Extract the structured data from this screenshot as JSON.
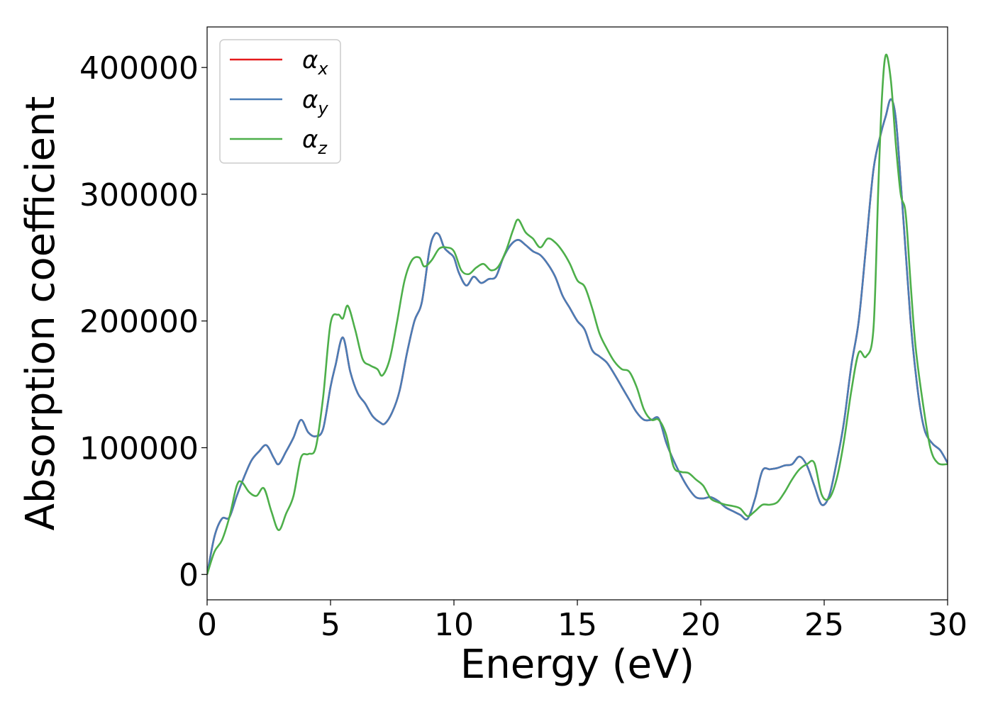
{
  "chart_data": {
    "type": "line",
    "xlabel": "Energy (eV)",
    "ylabel": "Absorption coefficient",
    "xlim": [
      0,
      30
    ],
    "ylim": [
      -20000,
      432000
    ],
    "xticks": [
      0,
      5,
      10,
      15,
      20,
      25,
      30
    ],
    "yticks": [
      0,
      100000,
      200000,
      300000,
      400000
    ],
    "xtick_labels": [
      "0",
      "5",
      "10",
      "15",
      "20",
      "25",
      "30"
    ],
    "ytick_labels": [
      "0",
      "100000",
      "200000",
      "300000",
      "400000"
    ],
    "legend_position": "top-left",
    "grid": false,
    "series": [
      {
        "name": "α",
        "subscript": "x",
        "color": "#e41a1c",
        "x": [
          0,
          0.3,
          0.6,
          0.9,
          1.2,
          1.5,
          1.8,
          2.1,
          2.4,
          2.7,
          2.9,
          3.2,
          3.5,
          3.8,
          4.1,
          4.4,
          4.7,
          5.0,
          5.2,
          5.5,
          5.8,
          6.1,
          6.4,
          6.7,
          7.0,
          7.2,
          7.5,
          7.8,
          8.1,
          8.4,
          8.7,
          9.0,
          9.2,
          9.4,
          9.6,
          9.8,
          10.0,
          10.2,
          10.5,
          10.8,
          11.1,
          11.4,
          11.7,
          12.0,
          12.3,
          12.6,
          12.9,
          13.2,
          13.5,
          13.8,
          14.1,
          14.4,
          14.7,
          15.0,
          15.3,
          15.6,
          15.9,
          16.2,
          16.5,
          16.8,
          17.1,
          17.4,
          17.7,
          18.0,
          18.3,
          18.6,
          18.9,
          19.2,
          19.5,
          19.8,
          20.1,
          20.4,
          20.7,
          21.0,
          21.3,
          21.6,
          21.9,
          22.2,
          22.5,
          22.8,
          23.1,
          23.4,
          23.7,
          24.0,
          24.3,
          24.6,
          24.9,
          25.2,
          25.5,
          25.8,
          26.1,
          26.4,
          26.7,
          27.0,
          27.3,
          27.5,
          27.7,
          27.9,
          28.1,
          28.3,
          28.5,
          28.7,
          28.9,
          29.1,
          29.4,
          29.7,
          30.0
        ],
        "y": [
          0,
          30000,
          44000,
          45000,
          62000,
          77000,
          90000,
          97000,
          102000,
          92000,
          87000,
          97000,
          108000,
          122000,
          112000,
          109000,
          115000,
          148000,
          165000,
          187000,
          160000,
          143000,
          135000,
          125000,
          120000,
          119000,
          128000,
          145000,
          175000,
          200000,
          215000,
          255000,
          268000,
          268000,
          258000,
          254000,
          250000,
          238000,
          228000,
          235000,
          230000,
          233000,
          235000,
          250000,
          260000,
          264000,
          260000,
          255000,
          252000,
          245000,
          235000,
          220000,
          210000,
          200000,
          193000,
          177000,
          172000,
          167000,
          158000,
          148000,
          138000,
          128000,
          122000,
          122000,
          123000,
          104000,
          90000,
          78000,
          68000,
          61000,
          60000,
          61000,
          58000,
          53000,
          50000,
          47000,
          44000,
          60000,
          82000,
          83000,
          84000,
          86000,
          87000,
          93000,
          86000,
          70000,
          55000,
          62000,
          88000,
          120000,
          165000,
          200000,
          260000,
          320000,
          348000,
          362000,
          375000,
          360000,
          310000,
          255000,
          200000,
          160000,
          130000,
          112000,
          103000,
          98000,
          88000
        ]
      },
      {
        "name": "α",
        "subscript": "y",
        "color": "#4a7db6",
        "x": [
          0,
          0.3,
          0.6,
          0.9,
          1.2,
          1.5,
          1.8,
          2.1,
          2.4,
          2.7,
          2.9,
          3.2,
          3.5,
          3.8,
          4.1,
          4.4,
          4.7,
          5.0,
          5.2,
          5.5,
          5.8,
          6.1,
          6.4,
          6.7,
          7.0,
          7.2,
          7.5,
          7.8,
          8.1,
          8.4,
          8.7,
          9.0,
          9.2,
          9.4,
          9.6,
          9.8,
          10.0,
          10.2,
          10.5,
          10.8,
          11.1,
          11.4,
          11.7,
          12.0,
          12.3,
          12.6,
          12.9,
          13.2,
          13.5,
          13.8,
          14.1,
          14.4,
          14.7,
          15.0,
          15.3,
          15.6,
          15.9,
          16.2,
          16.5,
          16.8,
          17.1,
          17.4,
          17.7,
          18.0,
          18.3,
          18.6,
          18.9,
          19.2,
          19.5,
          19.8,
          20.1,
          20.4,
          20.7,
          21.0,
          21.3,
          21.6,
          21.9,
          22.2,
          22.5,
          22.8,
          23.1,
          23.4,
          23.7,
          24.0,
          24.3,
          24.6,
          24.9,
          25.2,
          25.5,
          25.8,
          26.1,
          26.4,
          26.7,
          27.0,
          27.3,
          27.5,
          27.7,
          27.9,
          28.1,
          28.3,
          28.5,
          28.7,
          28.9,
          29.1,
          29.4,
          29.7,
          30.0
        ],
        "y": [
          0,
          30000,
          44000,
          45000,
          62000,
          77000,
          90000,
          97000,
          102000,
          92000,
          87000,
          97000,
          108000,
          122000,
          112000,
          109000,
          115000,
          148000,
          165000,
          187000,
          160000,
          143000,
          135000,
          125000,
          120000,
          119000,
          128000,
          145000,
          175000,
          200000,
          215000,
          255000,
          268000,
          268000,
          258000,
          254000,
          250000,
          238000,
          228000,
          235000,
          230000,
          233000,
          235000,
          250000,
          260000,
          264000,
          260000,
          255000,
          252000,
          245000,
          235000,
          220000,
          210000,
          200000,
          193000,
          177000,
          172000,
          167000,
          158000,
          148000,
          138000,
          128000,
          122000,
          122000,
          123000,
          104000,
          90000,
          78000,
          68000,
          61000,
          60000,
          61000,
          58000,
          53000,
          50000,
          47000,
          44000,
          60000,
          82000,
          83000,
          84000,
          86000,
          87000,
          93000,
          86000,
          70000,
          55000,
          62000,
          88000,
          120000,
          165000,
          200000,
          260000,
          320000,
          348000,
          362000,
          375000,
          360000,
          310000,
          255000,
          200000,
          160000,
          130000,
          112000,
          103000,
          98000,
          88000
        ]
      },
      {
        "name": "α",
        "subscript": "z",
        "color": "#4daf4a",
        "x": [
          0,
          0.3,
          0.6,
          0.9,
          1.2,
          1.4,
          1.7,
          2.0,
          2.3,
          2.6,
          2.9,
          3.2,
          3.5,
          3.8,
          4.1,
          4.4,
          4.7,
          5.0,
          5.3,
          5.5,
          5.7,
          6.0,
          6.3,
          6.6,
          6.9,
          7.1,
          7.4,
          7.7,
          8.0,
          8.3,
          8.6,
          8.8,
          9.1,
          9.4,
          9.7,
          10.0,
          10.3,
          10.6,
          10.9,
          11.2,
          11.5,
          11.8,
          12.1,
          12.4,
          12.6,
          12.9,
          13.2,
          13.5,
          13.8,
          14.1,
          14.4,
          14.7,
          15.0,
          15.3,
          15.6,
          15.9,
          16.2,
          16.5,
          16.8,
          17.1,
          17.4,
          17.7,
          18.0,
          18.3,
          18.6,
          18.9,
          19.2,
          19.5,
          19.8,
          20.1,
          20.4,
          20.7,
          21.0,
          21.3,
          21.6,
          21.9,
          22.2,
          22.5,
          22.8,
          23.1,
          23.4,
          23.7,
          24.0,
          24.3,
          24.6,
          24.9,
          25.2,
          25.5,
          25.8,
          26.1,
          26.4,
          26.7,
          27.0,
          27.2,
          27.35,
          27.5,
          27.7,
          27.9,
          28.1,
          28.3,
          28.5,
          28.7,
          29.0,
          29.3,
          29.6,
          30.0
        ],
        "y": [
          0,
          18000,
          27000,
          45000,
          70000,
          73000,
          65000,
          62000,
          68000,
          50000,
          35000,
          48000,
          62000,
          92000,
          95000,
          100000,
          140000,
          198000,
          205000,
          202000,
          212000,
          193000,
          170000,
          165000,
          162000,
          157000,
          170000,
          200000,
          232000,
          248000,
          250000,
          243000,
          248000,
          257000,
          258000,
          255000,
          240000,
          237000,
          242000,
          245000,
          240000,
          243000,
          255000,
          272000,
          280000,
          270000,
          265000,
          258000,
          265000,
          262000,
          255000,
          245000,
          232000,
          227000,
          210000,
          190000,
          178000,
          168000,
          162000,
          160000,
          148000,
          130000,
          122000,
          122000,
          110000,
          85000,
          81000,
          80000,
          75000,
          70000,
          60000,
          57000,
          55000,
          54000,
          52000,
          46000,
          50000,
          55000,
          55000,
          57000,
          65000,
          75000,
          83000,
          87000,
          88000,
          63000,
          60000,
          75000,
          105000,
          145000,
          175000,
          172000,
          195000,
          310000,
          380000,
          410000,
          390000,
          340000,
          300000,
          285000,
          230000,
          180000,
          135000,
          100000,
          88000,
          87000
        ]
      }
    ]
  }
}
